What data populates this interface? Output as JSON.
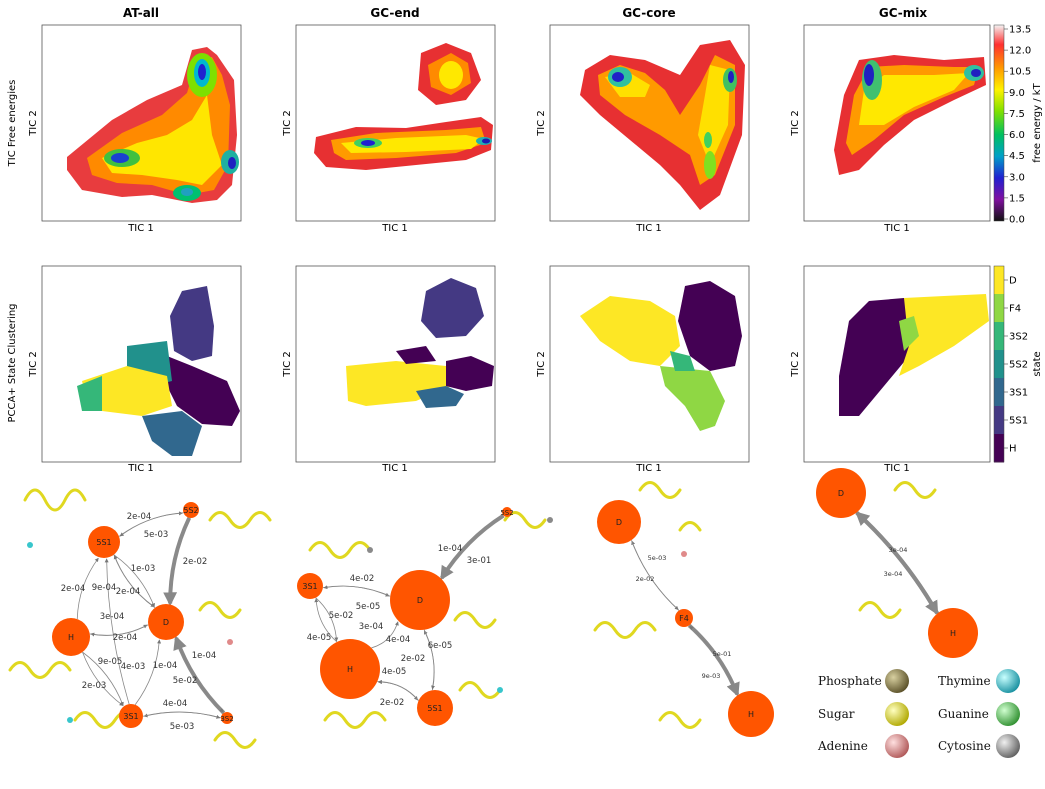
{
  "column_titles": [
    "AT-all",
    "GC-end",
    "GC-core",
    "GC-mix"
  ],
  "row_labels": {
    "row1": "TIC Free energies",
    "row2": "PCCA+ State Clustering"
  },
  "axis": {
    "x": "TIC 1",
    "y": "TIC 2"
  },
  "colorbar_energy": {
    "label": "free energy / kT",
    "ticks": [
      "13.5",
      "12.0",
      "10.5",
      "9.0",
      "7.5",
      "6.0",
      "4.5",
      "3.0",
      "1.5",
      "0.0"
    ],
    "colors": [
      "#f5f5f5",
      "#ff2020",
      "#ff9a00",
      "#fff200",
      "#7fe000",
      "#00c060",
      "#00a0c0",
      "#2020d0",
      "#8010a0",
      "#101010"
    ]
  },
  "colorbar_state": {
    "label": "state",
    "ticks": [
      "D",
      "F4",
      "3S2",
      "5S2",
      "3S1",
      "5S1",
      "H"
    ],
    "colors": [
      "#fde725",
      "#8fd744",
      "#35b779",
      "#21918c",
      "#31688e",
      "#443983",
      "#440154"
    ]
  },
  "networks": [
    {
      "nodes": [
        {
          "label": "5S2"
        },
        {
          "label": "5S1"
        },
        {
          "label": "H"
        },
        {
          "label": "D"
        },
        {
          "label": "3S1"
        },
        {
          "label": "3S2"
        }
      ],
      "edge_labels": [
        "2e-04",
        "5e-03",
        "1e-03",
        "2e-02",
        "2e-04",
        "9e-04",
        "2e-04",
        "3e-04",
        "2e-04",
        "9e-05",
        "4e-03",
        "1e-04",
        "5e-02",
        "1e-04",
        "2e-03",
        "4e-04",
        "5e-03"
      ]
    },
    {
      "nodes": [
        {
          "label": "5S2"
        },
        {
          "label": "3S1"
        },
        {
          "label": "D"
        },
        {
          "label": "H"
        },
        {
          "label": "5S1"
        }
      ],
      "edge_labels": [
        "1e-04",
        "3e-01",
        "4e-02",
        "5e-05",
        "5e-02",
        "3e-04",
        "4e-05",
        "4e-04",
        "2e-02",
        "6e-05",
        "4e-05",
        "2e-02"
      ]
    },
    {
      "nodes": [
        {
          "label": "D"
        },
        {
          "label": "F4"
        },
        {
          "label": "H"
        }
      ],
      "edge_labels": [
        "5e-03",
        "2e-02",
        "5e-01",
        "9e-03"
      ]
    },
    {
      "nodes": [
        {
          "label": "D"
        },
        {
          "label": "H"
        }
      ],
      "edge_labels": [
        "3e-04",
        "3e-04"
      ]
    }
  ],
  "legend": [
    {
      "label": "Phosphate",
      "color": "#7a6e3a"
    },
    {
      "label": "Thymine",
      "color": "#38c6cc"
    },
    {
      "label": "Sugar",
      "color": "#e8e020"
    },
    {
      "label": "Guanine",
      "color": "#4fc04f"
    },
    {
      "label": "Adenine",
      "color": "#e08a8a"
    },
    {
      "label": "Cytosine",
      "color": "#8a8a8a"
    }
  ]
}
